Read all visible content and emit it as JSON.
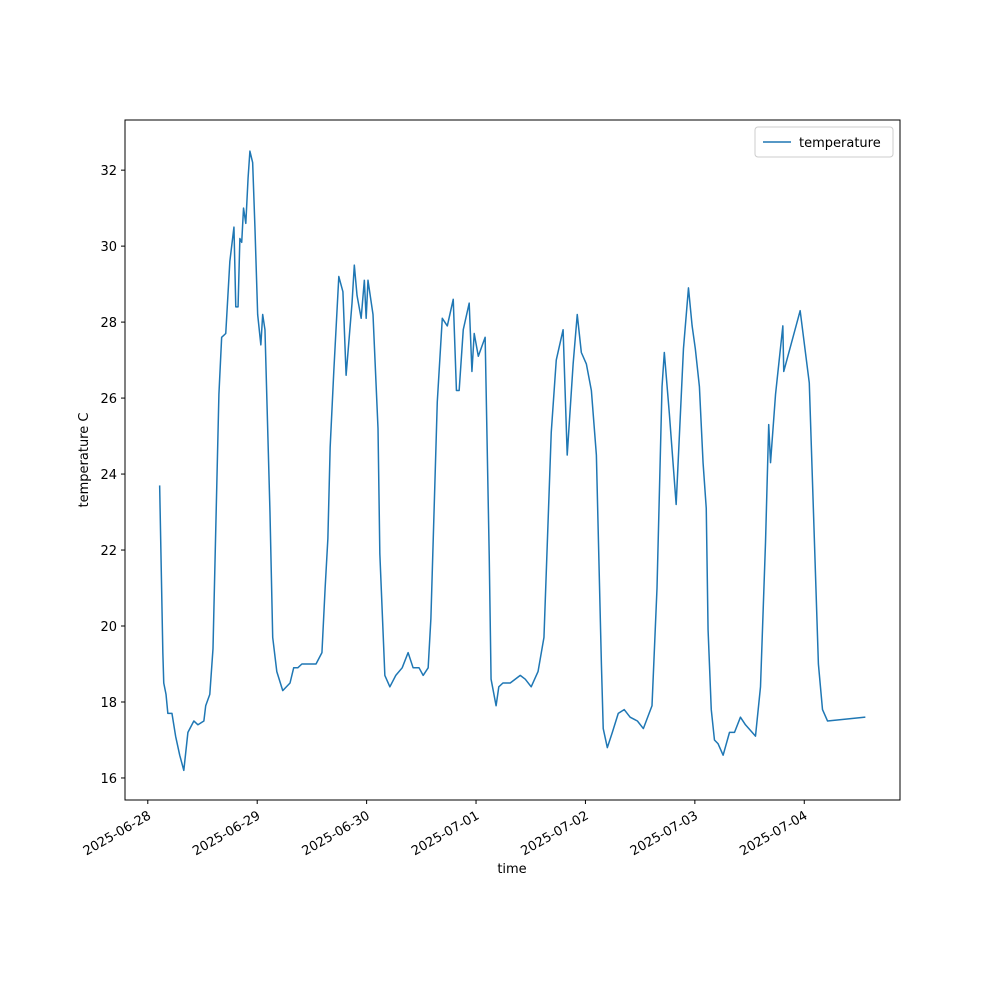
{
  "chart_data": {
    "type": "line",
    "xlabel": "time",
    "ylabel": "temperature C",
    "legend": "upper right",
    "x": [
      "2025-06-28T02:36",
      "2025-06-28T03:18",
      "2025-06-28T03:30",
      "2025-06-28T04:00",
      "2025-06-28T04:24",
      "2025-06-28T05:18",
      "2025-06-28T06:06",
      "2025-06-28T07:00",
      "2025-06-28T07:54",
      "2025-06-28T08:48",
      "2025-06-28T10:06",
      "2025-06-28T11:00",
      "2025-06-28T12:18",
      "2025-06-28T12:42",
      "2025-06-28T13:36",
      "2025-06-28T14:18",
      "2025-06-28T14:54",
      "2025-06-28T15:36",
      "2025-06-28T16:12",
      "2025-06-28T17:06",
      "2025-06-28T18:00",
      "2025-06-28T18:54",
      "2025-06-28T19:18",
      "2025-06-28T19:48",
      "2025-06-28T20:12",
      "2025-06-28T20:36",
      "2025-06-28T21:00",
      "2025-06-28T21:30",
      "2025-06-28T22:00",
      "2025-06-28T22:24",
      "2025-06-28T23:00",
      "2025-06-28T23:30",
      "2025-06-29T00:06",
      "2025-06-29T00:48",
      "2025-06-29T01:12",
      "2025-06-29T01:42",
      "2025-06-29T02:48",
      "2025-06-29T03:24",
      "2025-06-29T04:18",
      "2025-06-29T05:36",
      "2025-06-29T07:12",
      "2025-06-29T08:00",
      "2025-06-29T08:54",
      "2025-06-29T09:48",
      "2025-06-29T12:54",
      "2025-06-29T14:12",
      "2025-06-29T14:54",
      "2025-06-29T15:30",
      "2025-06-29T16:00",
      "2025-06-29T16:48",
      "2025-06-29T17:54",
      "2025-06-29T18:48",
      "2025-06-29T19:30",
      "2025-06-29T20:48",
      "2025-06-29T21:18",
      "2025-06-29T21:54",
      "2025-06-29T22:48",
      "2025-06-29T23:30",
      "2025-06-29T23:54",
      "2025-06-30T00:18",
      "2025-06-30T01:24",
      "2025-06-30T02:30",
      "2025-06-30T02:54",
      "2025-06-30T04:00",
      "2025-06-30T05:06",
      "2025-06-30T06:24",
      "2025-06-30T07:48",
      "2025-06-30T09:06",
      "2025-06-30T10:12",
      "2025-06-30T11:30",
      "2025-06-30T12:24",
      "2025-06-30T13:30",
      "2025-06-30T14:06",
      "2025-06-30T15:30",
      "2025-06-30T16:36",
      "2025-06-30T17:42",
      "2025-06-30T19:00",
      "2025-06-30T19:42",
      "2025-06-30T20:18",
      "2025-06-30T21:12",
      "2025-06-30T22:30",
      "2025-06-30T23:06",
      "2025-06-30T23:36",
      "2025-07-01T00:30",
      "2025-07-01T02:00",
      "2025-07-01T02:54",
      "2025-07-01T03:18",
      "2025-07-01T04:24",
      "2025-07-01T05:00",
      "2025-07-01T05:54",
      "2025-07-01T07:30",
      "2025-07-01T09:42",
      "2025-07-01T10:48",
      "2025-07-01T12:06",
      "2025-07-01T13:36",
      "2025-07-01T14:54",
      "2025-07-01T16:30",
      "2025-07-01T17:36",
      "2025-07-01T19:06",
      "2025-07-01T20:00",
      "2025-07-01T21:18",
      "2025-07-01T22:12",
      "2025-07-01T23:06",
      "2025-07-02T00:12",
      "2025-07-02T01:18",
      "2025-07-02T02:24",
      "2025-07-02T03:30",
      "2025-07-02T03:54",
      "2025-07-02T04:48",
      "2025-07-02T05:54",
      "2025-07-02T07:12",
      "2025-07-02T08:30",
      "2025-07-02T09:48",
      "2025-07-02T11:24",
      "2025-07-02T12:42",
      "2025-07-02T14:36",
      "2025-07-02T15:42",
      "2025-07-02T16:48",
      "2025-07-02T17:18",
      "2025-07-02T18:24",
      "2025-07-02T19:54",
      "2025-07-02T21:30",
      "2025-07-02T22:36",
      "2025-07-02T23:24",
      "2025-07-03T00:06",
      "2025-07-03T01:00",
      "2025-07-03T01:48",
      "2025-07-03T02:30",
      "2025-07-03T02:54",
      "2025-07-03T03:36",
      "2025-07-03T04:18",
      "2025-07-03T05:06",
      "2025-07-03T06:12",
      "2025-07-03T07:36",
      "2025-07-03T08:42",
      "2025-07-03T10:00",
      "2025-07-03T11:06",
      "2025-07-03T13:18",
      "2025-07-03T14:24",
      "2025-07-03T15:30",
      "2025-07-03T16:12",
      "2025-07-03T16:36",
      "2025-07-03T17:42",
      "2025-07-03T19:18",
      "2025-07-03T19:30",
      "2025-07-03T23:06",
      "2025-07-04T01:06",
      "2025-07-04T03:06",
      "2025-07-04T04:00",
      "2025-07-04T05:06",
      "2025-07-04T13:24"
    ],
    "series": [
      {
        "name": "temperature",
        "color": "#1f77b4",
        "values": [
          23.7,
          19.3,
          18.5,
          18.2,
          17.7,
          17.7,
          17.1,
          16.6,
          16.2,
          17.2,
          17.5,
          17.4,
          17.5,
          17.9,
          18.2,
          19.4,
          22.5,
          26.1,
          27.6,
          27.7,
          29.6,
          30.5,
          28.4,
          28.4,
          30.2,
          30.1,
          31.0,
          30.6,
          31.8,
          32.5,
          32.2,
          30.5,
          28.2,
          27.4,
          28.2,
          27.8,
          23.0,
          19.7,
          18.8,
          18.3,
          18.5,
          18.9,
          18.9,
          19.0,
          19.0,
          19.3,
          21.0,
          22.3,
          24.7,
          26.7,
          29.2,
          28.8,
          26.6,
          28.5,
          29.5,
          28.7,
          28.1,
          29.1,
          28.1,
          29.1,
          28.2,
          25.2,
          21.9,
          18.7,
          18.4,
          18.7,
          18.9,
          19.3,
          18.9,
          18.9,
          18.7,
          18.9,
          20.2,
          25.9,
          28.1,
          27.9,
          28.6,
          26.2,
          26.2,
          27.8,
          28.5,
          26.7,
          27.7,
          27.1,
          27.6,
          21.8,
          18.6,
          17.9,
          18.4,
          18.5,
          18.5,
          18.7,
          18.6,
          18.4,
          18.8,
          19.7,
          25.1,
          27.0,
          27.8,
          24.5,
          26.9,
          28.2,
          27.2,
          26.9,
          26.2,
          24.5,
          19.0,
          17.3,
          16.8,
          17.2,
          17.7,
          17.8,
          17.6,
          17.5,
          17.3,
          17.9,
          21.0,
          26.3,
          27.2,
          25.6,
          23.2,
          27.3,
          28.9,
          27.9,
          27.3,
          26.3,
          24.3,
          23.1,
          19.9,
          17.8,
          17.0,
          16.9,
          16.6,
          17.2,
          17.2,
          17.6,
          17.4,
          17.1,
          18.4,
          22.2,
          25.3,
          24.3,
          26.1,
          27.9,
          26.7,
          28.3,
          26.4,
          19.0,
          17.8,
          17.5,
          17.6
        ]
      }
    ],
    "xlim": [
      "2025-06-27T19:00",
      "2025-07-04T21:00"
    ],
    "xticks": [
      "2025-06-28",
      "2025-06-29",
      "2025-06-30",
      "2025-07-01",
      "2025-07-02",
      "2025-07-03",
      "2025-07-04"
    ],
    "ylim": [
      15.42,
      33.32
    ],
    "yticks": [
      16,
      18,
      20,
      22,
      24,
      26,
      28,
      30,
      32
    ]
  }
}
